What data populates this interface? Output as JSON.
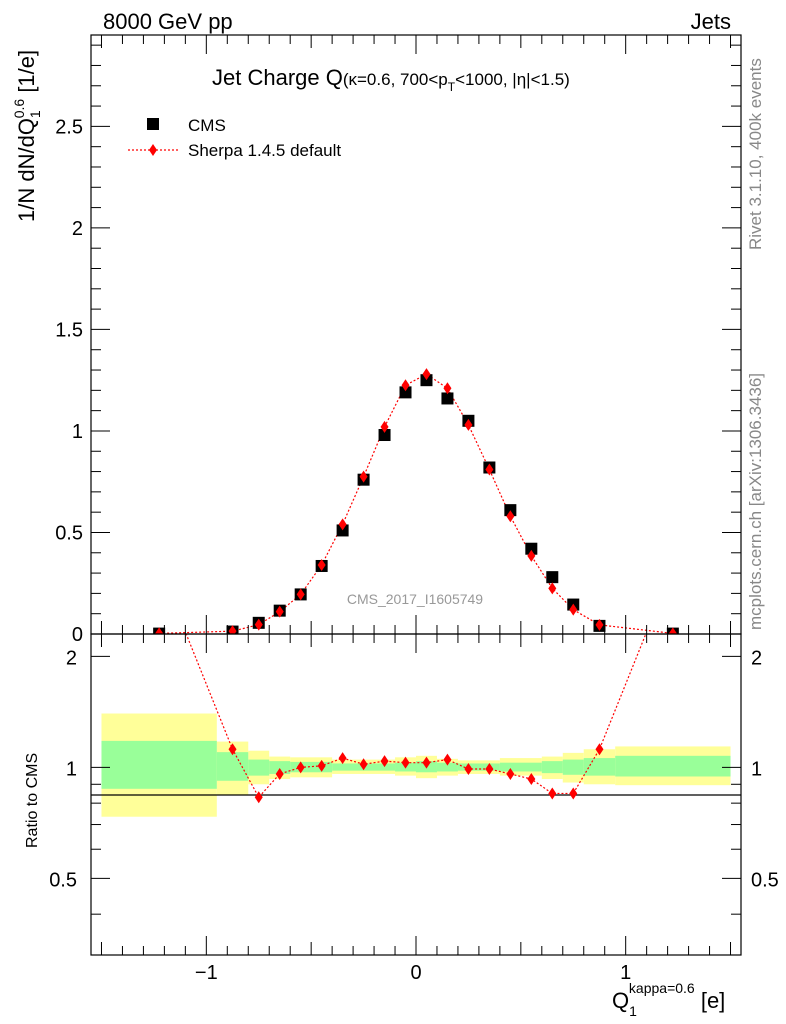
{
  "header": {
    "energy_label": "8000 GeV pp",
    "category_label": "Jets"
  },
  "side_labels": {
    "rivet": "Rivet 3.1.10,  400k events",
    "mcplots": "mcplots.cern.ch [arXiv:1306.3436]"
  },
  "title": {
    "main": "Jet Charge Q",
    "selection_prefix": "(κ=0.6, 700<p",
    "selection_sub": "T",
    "selection_suffix": "<1000, |η|<1.5)"
  },
  "watermark": "CMS_2017_I1605749",
  "legend": {
    "data_label": "CMS",
    "mc_label": "Sherpa 1.4.5 default"
  },
  "axes": {
    "y_main": {
      "base": "1/N dN/dQ",
      "sub": "1",
      "sup": "0.6",
      "unit": " [1/e]"
    },
    "y_ratio": "Ratio to CMS",
    "x": {
      "base": "Q",
      "sub": "1",
      "sup": "kappa=0.6",
      "unit": " [e]"
    }
  },
  "colors": {
    "data": "#000000",
    "mc": "#ff0000",
    "band_inner": "#99ff99",
    "band_outer": "#ffff99"
  },
  "chart_data": {
    "type": "scatter",
    "xlim": [
      -1.55,
      1.55
    ],
    "main": {
      "ylim": [
        0,
        2.95
      ],
      "yticks": [
        0,
        0.5,
        1,
        1.5,
        2,
        2.5
      ],
      "ytick_labels": [
        "0",
        "0.5",
        "1",
        "1.5",
        "2",
        "2.5"
      ]
    },
    "ratio": {
      "ylim": [
        0.31,
        2.3
      ],
      "yticks": [
        0.5,
        1,
        2
      ],
      "ytick_labels": [
        "0.5",
        "1",
        "2"
      ]
    },
    "xticks": [
      -1,
      0,
      1
    ],
    "xtick_labels": [
      "−1",
      "0",
      "1"
    ],
    "series": [
      {
        "name": "CMS",
        "marker": "square",
        "points": [
          {
            "x": -1.225,
            "y": 0.002
          },
          {
            "x": -0.875,
            "y": 0.012
          },
          {
            "x": -0.75,
            "y": 0.055
          },
          {
            "x": -0.65,
            "y": 0.115
          },
          {
            "x": -0.55,
            "y": 0.195
          },
          {
            "x": -0.45,
            "y": 0.335
          },
          {
            "x": -0.35,
            "y": 0.51
          },
          {
            "x": -0.25,
            "y": 0.76
          },
          {
            "x": -0.15,
            "y": 0.98
          },
          {
            "x": -0.05,
            "y": 1.19
          },
          {
            "x": 0.05,
            "y": 1.25
          },
          {
            "x": 0.15,
            "y": 1.16
          },
          {
            "x": 0.25,
            "y": 1.05
          },
          {
            "x": 0.35,
            "y": 0.82
          },
          {
            "x": 0.45,
            "y": 0.61
          },
          {
            "x": 0.55,
            "y": 0.42
          },
          {
            "x": 0.65,
            "y": 0.28
          },
          {
            "x": 0.75,
            "y": 0.145
          },
          {
            "x": 0.875,
            "y": 0.04
          },
          {
            "x": 1.225,
            "y": 0.002
          }
        ]
      },
      {
        "name": "Sherpa 1.4.5 default",
        "marker": "diamond",
        "points": [
          {
            "x": -1.225,
            "y": 0.003
          },
          {
            "x": -0.875,
            "y": 0.014
          },
          {
            "x": -0.75,
            "y": 0.046
          },
          {
            "x": -0.65,
            "y": 0.11
          },
          {
            "x": -0.55,
            "y": 0.195
          },
          {
            "x": -0.45,
            "y": 0.34
          },
          {
            "x": -0.35,
            "y": 0.54
          },
          {
            "x": -0.25,
            "y": 0.775
          },
          {
            "x": -0.15,
            "y": 1.02
          },
          {
            "x": -0.05,
            "y": 1.225
          },
          {
            "x": 0.05,
            "y": 1.28
          },
          {
            "x": 0.15,
            "y": 1.21
          },
          {
            "x": 0.25,
            "y": 1.03
          },
          {
            "x": 0.35,
            "y": 0.81
          },
          {
            "x": 0.45,
            "y": 0.58
          },
          {
            "x": 0.55,
            "y": 0.385
          },
          {
            "x": 0.65,
            "y": 0.225
          },
          {
            "x": 0.75,
            "y": 0.12
          },
          {
            "x": 0.875,
            "y": 0.045
          },
          {
            "x": 1.225,
            "y": 0.003
          }
        ]
      }
    ],
    "ratio_series": {
      "name": "Sherpa 1.4.5 default",
      "points": [
        {
          "x": -1.225,
          "y": 3.5
        },
        {
          "x": -0.875,
          "y": 1.12
        },
        {
          "x": -0.75,
          "y": 0.83
        },
        {
          "x": -0.65,
          "y": 0.96
        },
        {
          "x": -0.55,
          "y": 1.0
        },
        {
          "x": -0.45,
          "y": 1.01
        },
        {
          "x": -0.35,
          "y": 1.06
        },
        {
          "x": -0.25,
          "y": 1.02
        },
        {
          "x": -0.15,
          "y": 1.04
        },
        {
          "x": -0.05,
          "y": 1.03
        },
        {
          "x": 0.05,
          "y": 1.03
        },
        {
          "x": 0.15,
          "y": 1.05
        },
        {
          "x": 0.25,
          "y": 0.99
        },
        {
          "x": 0.35,
          "y": 0.99
        },
        {
          "x": 0.45,
          "y": 0.96
        },
        {
          "x": 0.55,
          "y": 0.93
        },
        {
          "x": 0.65,
          "y": 0.85
        },
        {
          "x": 0.75,
          "y": 0.85
        },
        {
          "x": 0.875,
          "y": 1.12
        },
        {
          "x": 1.225,
          "y": 3.5
        }
      ]
    },
    "uncertainty_bands": [
      {
        "xlo": -1.5,
        "xhi": -0.95,
        "outer": [
          0.735,
          1.4
        ],
        "inner": [
          0.875,
          1.18
        ]
      },
      {
        "xlo": -0.95,
        "xhi": -0.8,
        "outer": [
          0.84,
          1.175
        ],
        "inner": [
          0.92,
          1.1
        ]
      },
      {
        "xlo": -0.8,
        "xhi": -0.7,
        "outer": [
          0.9,
          1.11
        ],
        "inner": [
          0.95,
          1.05
        ]
      },
      {
        "xlo": -0.7,
        "xhi": -0.6,
        "outer": [
          0.93,
          1.07
        ],
        "inner": [
          0.96,
          1.04
        ]
      },
      {
        "xlo": -0.6,
        "xhi": -0.4,
        "outer": [
          0.94,
          1.065
        ],
        "inner": [
          0.97,
          1.035
        ]
      },
      {
        "xlo": -0.4,
        "xhi": -0.1,
        "outer": [
          0.96,
          1.05
        ],
        "inner": [
          0.98,
          1.025
        ]
      },
      {
        "xlo": -0.1,
        "xhi": 0.0,
        "outer": [
          0.95,
          1.065
        ],
        "inner": [
          0.975,
          1.03
        ]
      },
      {
        "xlo": 0.0,
        "xhi": 0.1,
        "outer": [
          0.935,
          1.075
        ],
        "inner": [
          0.97,
          1.04
        ]
      },
      {
        "xlo": 0.1,
        "xhi": 0.2,
        "outer": [
          0.95,
          1.055
        ],
        "inner": [
          0.975,
          1.03
        ]
      },
      {
        "xlo": 0.2,
        "xhi": 0.4,
        "outer": [
          0.96,
          1.045
        ],
        "inner": [
          0.98,
          1.025
        ]
      },
      {
        "xlo": 0.4,
        "xhi": 0.6,
        "outer": [
          0.95,
          1.06
        ],
        "inner": [
          0.975,
          1.03
        ]
      },
      {
        "xlo": 0.6,
        "xhi": 0.7,
        "outer": [
          0.93,
          1.07
        ],
        "inner": [
          0.965,
          1.04
        ]
      },
      {
        "xlo": 0.7,
        "xhi": 0.8,
        "outer": [
          0.91,
          1.095
        ],
        "inner": [
          0.955,
          1.05
        ]
      },
      {
        "xlo": 0.8,
        "xhi": 0.95,
        "outer": [
          0.9,
          1.12
        ],
        "inner": [
          0.95,
          1.06
        ]
      },
      {
        "xlo": 0.95,
        "xhi": 1.5,
        "outer": [
          0.895,
          1.14
        ],
        "inner": [
          0.945,
          1.075
        ]
      }
    ]
  }
}
